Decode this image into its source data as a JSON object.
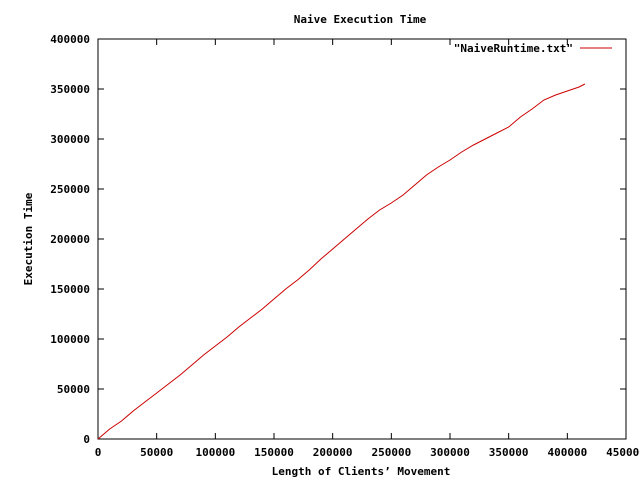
{
  "chart_data": {
    "type": "line",
    "title": "Naive Execution Time",
    "xlabel": "Length of Clients’ Movement",
    "ylabel": "Execution Time",
    "xlim": [
      0,
      450000
    ],
    "ylim": [
      0,
      400000
    ],
    "xticks": [
      0,
      50000,
      100000,
      150000,
      200000,
      250000,
      300000,
      350000,
      400000,
      450000
    ],
    "xtick_labels": [
      "0",
      "50000",
      "100000",
      "150000",
      "200000",
      "250000",
      "300000",
      "350000",
      "400000",
      "450000"
    ],
    "yticks": [
      0,
      50000,
      100000,
      150000,
      200000,
      250000,
      300000,
      350000,
      400000
    ],
    "ytick_labels": [
      "0",
      "50000",
      "100000",
      "150000",
      "200000",
      "250000",
      "300000",
      "350000",
      "400000"
    ],
    "grid": false,
    "legend_position": "top-right",
    "series": [
      {
        "name": "\"NaiveRuntime.txt\"",
        "color": "#cc0000",
        "x": [
          0,
          10000,
          20000,
          30000,
          40000,
          50000,
          60000,
          70000,
          80000,
          90000,
          100000,
          110000,
          120000,
          130000,
          140000,
          150000,
          160000,
          170000,
          180000,
          190000,
          200000,
          210000,
          220000,
          230000,
          240000,
          250000,
          260000,
          270000,
          280000,
          290000,
          300000,
          310000,
          320000,
          330000,
          340000,
          350000,
          360000,
          370000,
          380000,
          390000,
          395000,
          400000,
          405000,
          410000,
          415000
        ],
        "y": [
          0,
          10000,
          18000,
          28000,
          37000,
          46000,
          55000,
          64000,
          74000,
          84000,
          93000,
          102000,
          112000,
          121000,
          130000,
          140000,
          150000,
          159000,
          169000,
          180000,
          190000,
          200000,
          210000,
          220000,
          229000,
          236000,
          244000,
          254000,
          264000,
          272000,
          279000,
          287000,
          294000,
          300000,
          306000,
          312000,
          322000,
          330000,
          339000,
          344000,
          346000,
          348000,
          350000,
          352000,
          355000
        ]
      }
    ]
  }
}
